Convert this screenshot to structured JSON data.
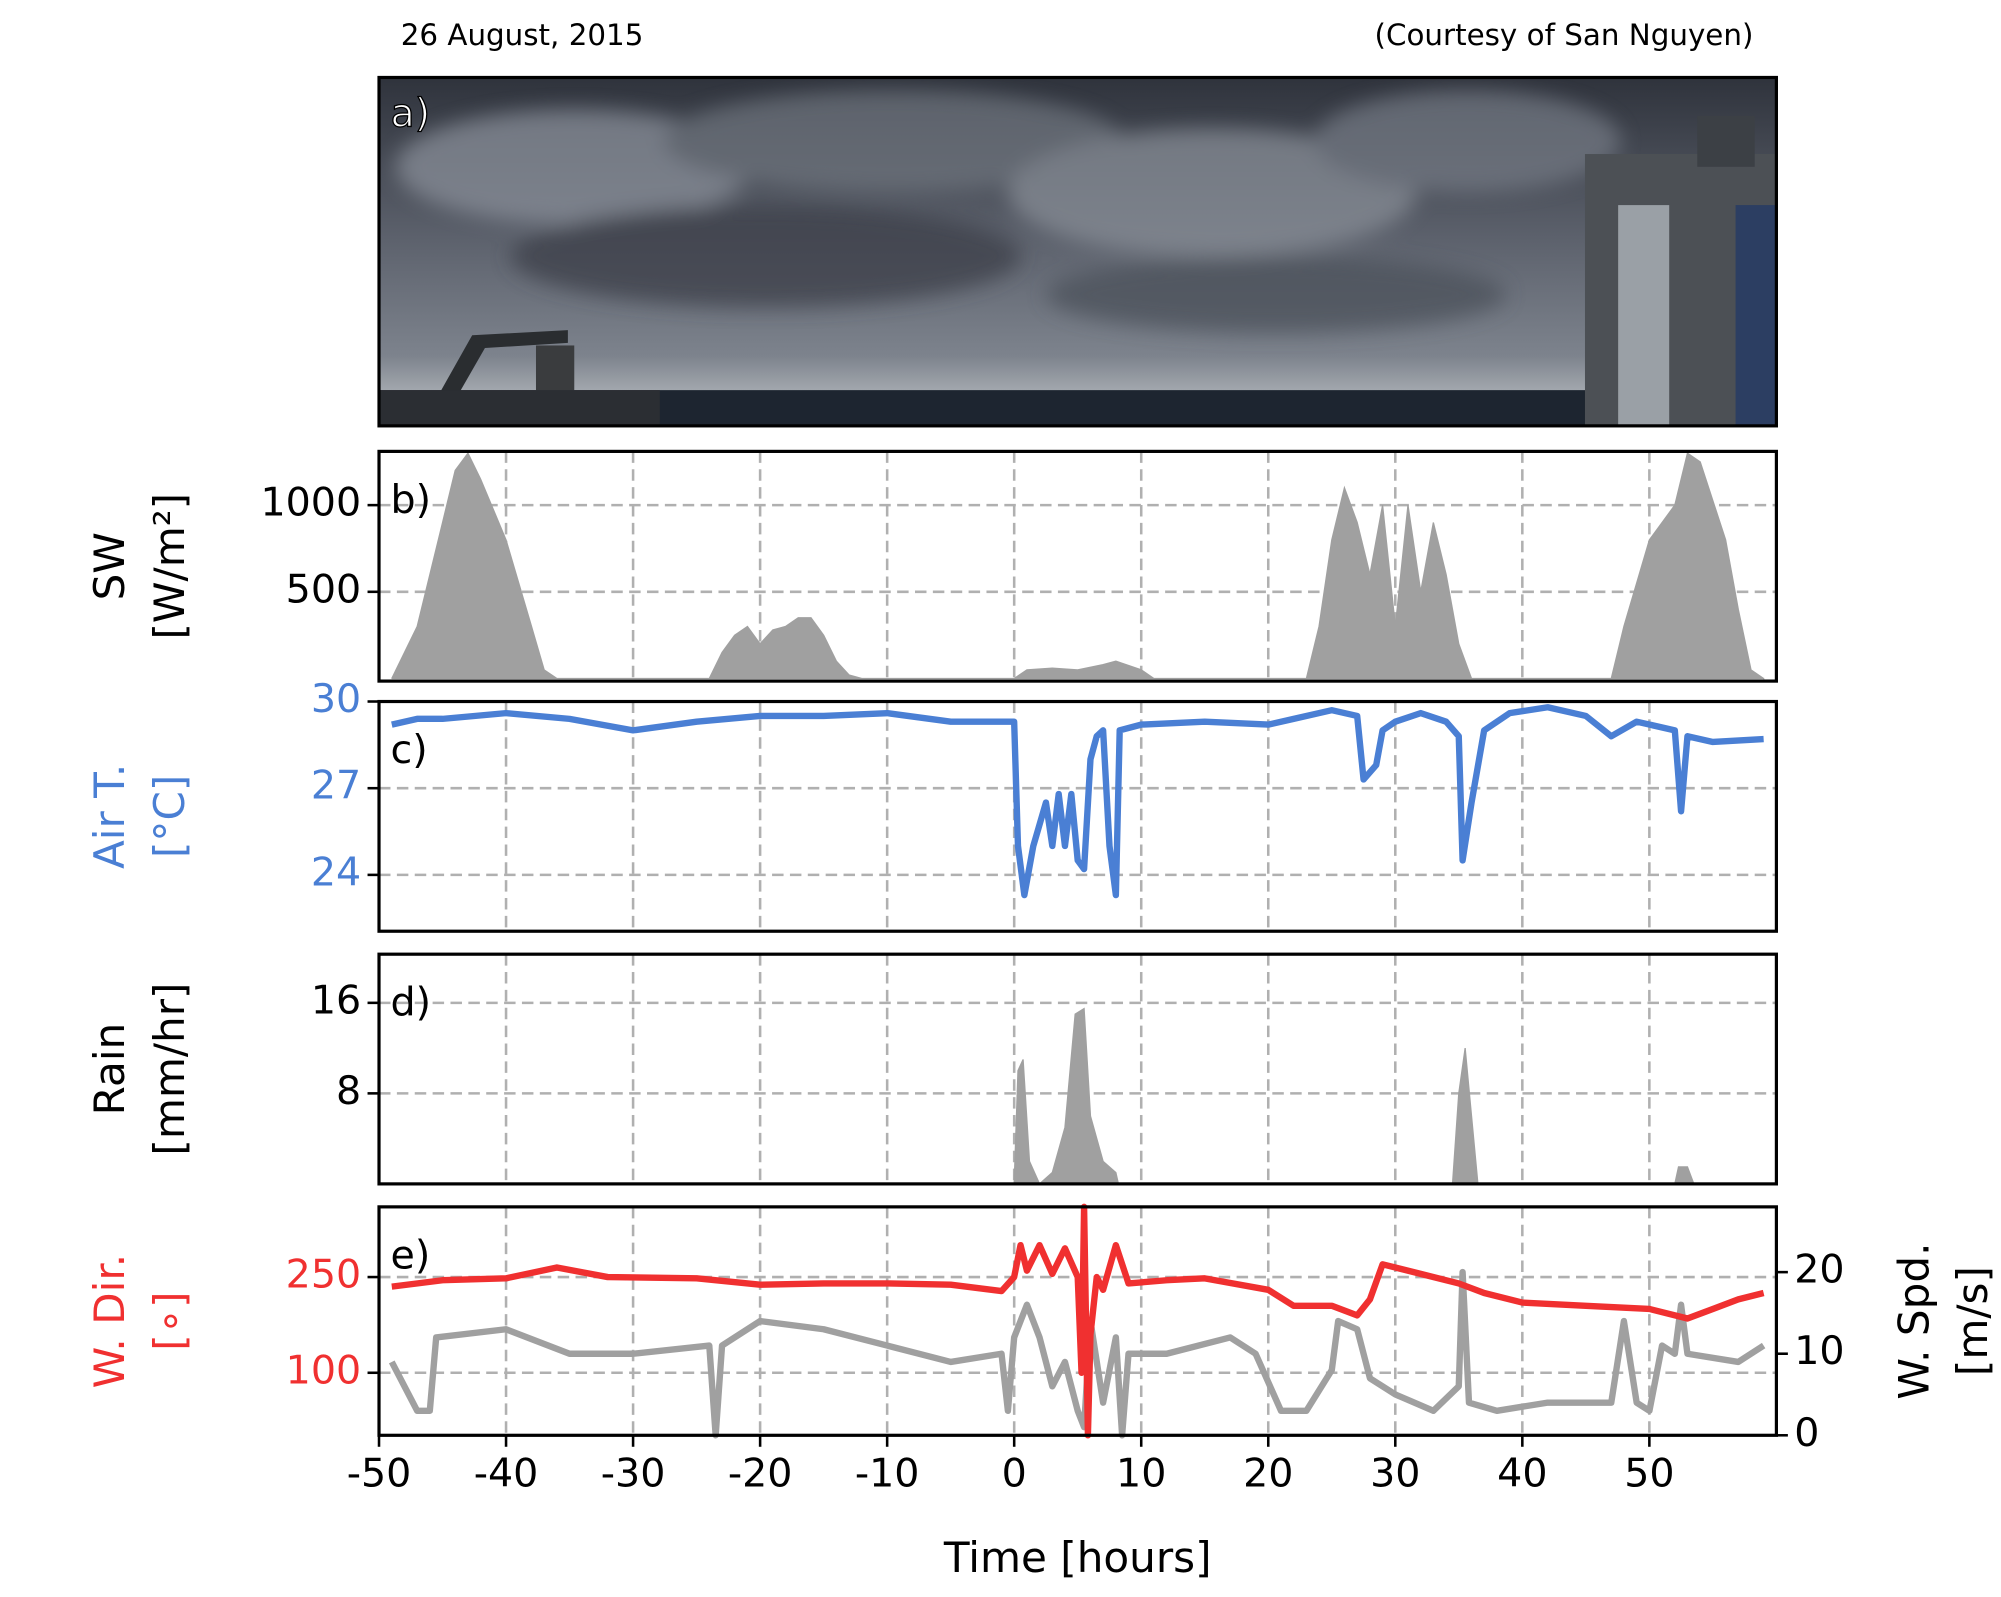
{
  "header": {
    "date": "26 August, 2015",
    "credit": "(Courtesy of San Nguyen)"
  },
  "photo": {
    "label": "a)"
  },
  "chart_data": [
    {
      "type": "area",
      "panel_label": "b)",
      "ylabel": [
        "SW",
        "[W/m²]"
      ],
      "ylabel_color": "#000000",
      "xlim": [
        -50,
        60
      ],
      "xticks": [
        -50,
        -40,
        -30,
        -20,
        -10,
        0,
        10,
        20,
        30,
        40,
        50
      ],
      "ylim": [
        -15,
        1310
      ],
      "yticks": [
        500,
        1000
      ],
      "grid": true,
      "series": [
        {
          "color": "#a0a0a0",
          "x": [
            -49,
            -47,
            -45,
            -44,
            -43,
            -42,
            -40,
            -38,
            -37,
            -36,
            -24,
            -23,
            -22,
            -21,
            -20,
            -19,
            -18,
            -17,
            -16,
            -15,
            -14,
            -13,
            -12,
            0,
            1,
            3,
            5,
            7,
            8,
            10,
            11,
            23,
            24,
            25,
            26,
            27,
            28,
            29,
            30,
            31,
            32,
            33,
            34,
            35,
            36,
            47,
            48,
            50,
            52,
            53,
            54,
            56,
            57,
            58,
            59
          ],
          "values": [
            0,
            300,
            900,
            1200,
            1300,
            1150,
            800,
            300,
            50,
            0,
            0,
            150,
            250,
            300,
            200,
            280,
            300,
            350,
            350,
            250,
            100,
            20,
            0,
            0,
            50,
            60,
            50,
            80,
            100,
            50,
            0,
            0,
            300,
            800,
            1100,
            900,
            600,
            1000,
            300,
            1000,
            500,
            900,
            600,
            200,
            0,
            0,
            300,
            800,
            1000,
            1300,
            1250,
            800,
            400,
            50,
            0
          ]
        }
      ]
    },
    {
      "type": "line",
      "panel_label": "c)",
      "ylabel": [
        "Air T.",
        "[°C]"
      ],
      "ylabel_color": "#4a7fd4",
      "xlim": [
        -50,
        60
      ],
      "xticks": [
        -50,
        -40,
        -30,
        -20,
        -10,
        0,
        10,
        20,
        30,
        40,
        50
      ],
      "ylim": [
        22.05,
        30
      ],
      "yticks": [
        24,
        27,
        30
      ],
      "grid": true,
      "series": [
        {
          "color": "#4a7fd4",
          "x": [
            -49,
            -47,
            -45,
            -40,
            -35,
            -30,
            -25,
            -20,
            -15,
            -10,
            -5,
            -1,
            0,
            0.3,
            0.8,
            1.5,
            2.5,
            3,
            3.5,
            4,
            4.5,
            5,
            5.5,
            6,
            6.5,
            7,
            7.5,
            8,
            8.3,
            10,
            15,
            20,
            22,
            25,
            27,
            27.5,
            28.5,
            29,
            30,
            32,
            34,
            35,
            35.3,
            36,
            37,
            39,
            42,
            45,
            47,
            49,
            52,
            52.5,
            53,
            55,
            59
          ],
          "values": [
            29.2,
            29.4,
            29.4,
            29.6,
            29.4,
            29.0,
            29.3,
            29.5,
            29.5,
            29.6,
            29.3,
            29.3,
            29.3,
            25,
            23.3,
            25,
            26.5,
            25,
            26.8,
            25,
            26.8,
            24.5,
            24.2,
            28,
            28.8,
            29,
            25,
            23.3,
            29,
            29.2,
            29.3,
            29.2,
            29.4,
            29.7,
            29.5,
            27.3,
            27.8,
            29,
            29.3,
            29.6,
            29.3,
            28.8,
            24.5,
            26.5,
            29,
            29.6,
            29.8,
            29.5,
            28.8,
            29.3,
            29,
            26.2,
            28.8,
            28.6,
            28.7
          ]
        }
      ]
    },
    {
      "type": "area",
      "panel_label": "d)",
      "ylabel": [
        "Rain",
        "[mm/hr]"
      ],
      "ylabel_color": "#000000",
      "xlim": [
        -50,
        60
      ],
      "xticks": [
        -50,
        -40,
        -30,
        -20,
        -10,
        0,
        10,
        20,
        30,
        40,
        50
      ],
      "ylim": [
        0,
        20.3
      ],
      "yticks": [
        8,
        16
      ],
      "grid": true,
      "series": [
        {
          "color": "#a0a0a0",
          "x": [
            -49,
            0,
            0.3,
            0.7,
            1.2,
            2,
            3,
            4,
            4.8,
            5.5,
            6,
            7,
            8,
            8.2,
            34.5,
            35,
            35.5,
            36,
            36.5,
            52,
            52.3,
            53,
            53.5,
            59
          ],
          "values": [
            0,
            0,
            10,
            11,
            2,
            0,
            1,
            5,
            15,
            15.5,
            6,
            2,
            1,
            0,
            0,
            8,
            12,
            6,
            0,
            0,
            1.5,
            1.5,
            0,
            0
          ]
        }
      ]
    },
    {
      "type": "line",
      "panel_label": "e)",
      "ylabel": [
        "W. Dir.",
        "[∘]"
      ],
      "ylabel_color": "#f03030",
      "y2label": [
        "W. Spd.",
        "[m/s]"
      ],
      "xlim": [
        -50,
        60
      ],
      "xticks": [
        -50,
        -40,
        -30,
        -20,
        -10,
        0,
        10,
        20,
        30,
        40,
        50
      ],
      "xlabel": "Time [hours]",
      "ylim": [
        2,
        360
      ],
      "yticks": [
        100,
        250
      ],
      "y2lim": [
        0,
        28
      ],
      "y2ticks": [
        0,
        10,
        20
      ],
      "grid": true,
      "series": [
        {
          "color": "#a0a0a0",
          "axis": "y2",
          "x": [
            -49,
            -47,
            -46,
            -45.5,
            -40,
            -35,
            -30,
            -24,
            -23.5,
            -23,
            -20,
            -15,
            -10,
            -5,
            -1,
            -0.5,
            0,
            1,
            2,
            3,
            4,
            5,
            5.5,
            6,
            7,
            8,
            8.5,
            9,
            12,
            17,
            19,
            21,
            23,
            25,
            25.5,
            27,
            28,
            30,
            33,
            35,
            35.3,
            35.8,
            38,
            42,
            47,
            48,
            49,
            50,
            51,
            52,
            52.5,
            53,
            57,
            59
          ],
          "values": [
            9,
            3,
            3,
            12,
            13,
            10,
            10,
            11,
            0,
            11,
            14,
            13,
            11,
            9,
            10,
            3,
            12,
            16,
            12,
            6,
            9,
            3,
            1,
            14,
            4,
            12,
            0,
            10,
            10,
            12,
            10,
            3,
            3,
            8,
            14,
            13,
            7,
            5,
            3,
            6,
            20,
            4,
            3,
            4,
            4,
            14,
            4,
            3,
            11,
            10,
            16,
            10,
            9,
            11
          ]
        },
        {
          "color": "#f03030",
          "x": [
            -49,
            -45,
            -40,
            -36,
            -32,
            -25,
            -20,
            -15,
            -10,
            -5,
            -1,
            0,
            0.5,
            1,
            2,
            3,
            4,
            5,
            5.3,
            5.5,
            5.8,
            6,
            6.5,
            7,
            8,
            9,
            12,
            15,
            20,
            22,
            25,
            27,
            28,
            29,
            32,
            35,
            37,
            40,
            45,
            50,
            53,
            55,
            57,
            59
          ],
          "values": [
            235,
            245,
            248,
            265,
            250,
            248,
            238,
            240,
            240,
            238,
            228,
            250,
            300,
            260,
            300,
            255,
            295,
            250,
            100,
            360,
            2,
            160,
            250,
            230,
            300,
            240,
            245,
            248,
            230,
            205,
            205,
            190,
            215,
            270,
            255,
            240,
            225,
            210,
            205,
            200,
            185,
            200,
            215,
            225
          ]
        }
      ]
    }
  ]
}
